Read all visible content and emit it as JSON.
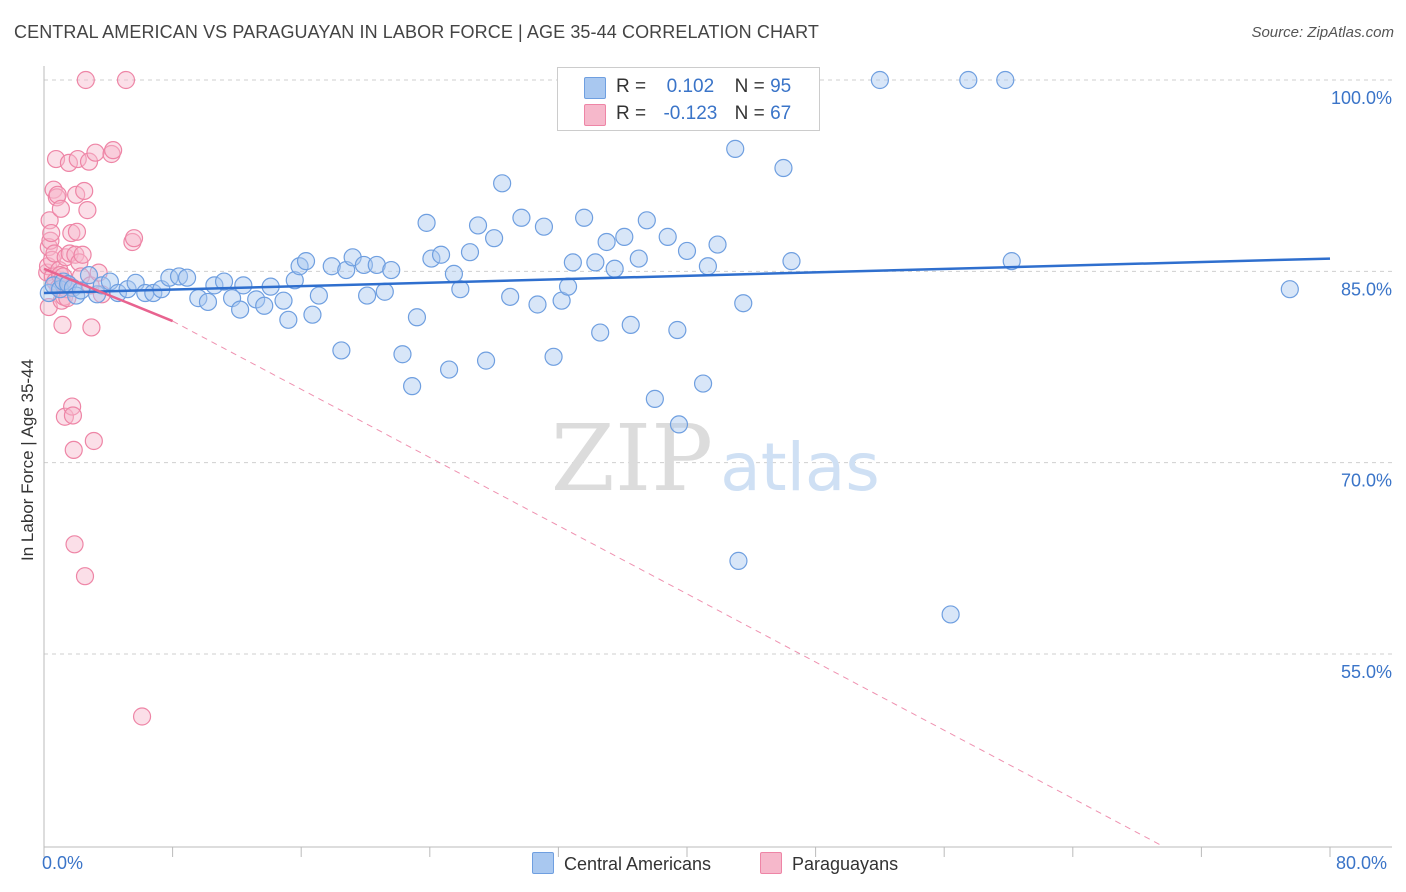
{
  "title": "CENTRAL AMERICAN VS PARAGUAYAN IN LABOR FORCE | AGE 35-44 CORRELATION CHART",
  "source": "Source: ZipAtlas.com",
  "watermark": {
    "zip": "ZIP",
    "atlas": "atlas"
  },
  "legend_stats": [
    {
      "r_label": "R =",
      "r_value": "0.102",
      "n_label": "N =",
      "n_value": "95"
    },
    {
      "r_label": "R =",
      "r_value": "-0.123",
      "n_label": "N =",
      "n_value": "67"
    }
  ],
  "colors": {
    "blue_fill": "#a9c8f0",
    "blue_stroke": "#6f9fe0",
    "blue_line": "#2f6fce",
    "pink_fill": "#f6b8cb",
    "pink_stroke": "#ee85a6",
    "pink_line": "#e8638f",
    "grid": "#cfcfcf",
    "tick_text": "#3a74c8"
  },
  "chart_data": {
    "type": "scatter",
    "title": "CENTRAL AMERICAN VS PARAGUAYAN IN LABOR FORCE | AGE 35-44 CORRELATION CHART",
    "xlabel": "",
    "ylabel": "In Labor Force | Age 35-44",
    "xlim": [
      0,
      80
    ],
    "ylim": [
      40,
      101.5
    ],
    "x_tick_labels": [
      "0.0%",
      "80.0%"
    ],
    "y_ticks": [
      55,
      70,
      85,
      100
    ],
    "y_tick_labels": [
      "55.0%",
      "70.0%",
      "85.0%",
      "100.0%"
    ],
    "grid": true,
    "legend_position": "bottom",
    "series": [
      {
        "name": "Central Americans",
        "r": 0.102,
        "n": 95,
        "trend": {
          "x": [
            0,
            80
          ],
          "y": [
            83.3,
            86.0
          ],
          "style": "solid"
        },
        "points": [
          [
            0.3,
            83.3
          ],
          [
            0.6,
            83.9
          ],
          [
            1.0,
            83.6
          ],
          [
            1.2,
            84.2
          ],
          [
            1.5,
            84.0
          ],
          [
            1.8,
            83.7
          ],
          [
            2.0,
            83.1
          ],
          [
            2.3,
            83.5
          ],
          [
            2.8,
            84.7
          ],
          [
            3.3,
            83.2
          ],
          [
            3.6,
            83.9
          ],
          [
            4.1,
            84.2
          ],
          [
            4.6,
            83.3
          ],
          [
            5.2,
            83.6
          ],
          [
            5.7,
            84.1
          ],
          [
            6.3,
            83.3
          ],
          [
            6.8,
            83.3
          ],
          [
            7.3,
            83.6
          ],
          [
            7.8,
            84.5
          ],
          [
            8.4,
            84.6
          ],
          [
            8.9,
            84.5
          ],
          [
            9.6,
            82.9
          ],
          [
            10.2,
            82.6
          ],
          [
            10.6,
            83.9
          ],
          [
            11.2,
            84.2
          ],
          [
            11.7,
            82.9
          ],
          [
            12.2,
            82.0
          ],
          [
            12.4,
            83.9
          ],
          [
            13.2,
            82.8
          ],
          [
            13.7,
            82.3
          ],
          [
            14.1,
            83.8
          ],
          [
            14.9,
            82.7
          ],
          [
            15.2,
            81.2
          ],
          [
            15.6,
            84.3
          ],
          [
            15.9,
            85.4
          ],
          [
            16.3,
            85.8
          ],
          [
            16.7,
            81.6
          ],
          [
            17.1,
            83.1
          ],
          [
            17.9,
            85.4
          ],
          [
            18.5,
            78.8
          ],
          [
            18.8,
            85.1
          ],
          [
            19.2,
            86.1
          ],
          [
            19.9,
            85.5
          ],
          [
            20.1,
            83.1
          ],
          [
            20.7,
            85.5
          ],
          [
            21.2,
            83.4
          ],
          [
            21.6,
            85.1
          ],
          [
            22.3,
            78.5
          ],
          [
            22.9,
            76.0
          ],
          [
            23.2,
            81.4
          ],
          [
            23.8,
            88.8
          ],
          [
            24.1,
            86.0
          ],
          [
            24.7,
            86.3
          ],
          [
            25.2,
            77.3
          ],
          [
            25.5,
            84.8
          ],
          [
            25.9,
            83.6
          ],
          [
            26.5,
            86.5
          ],
          [
            27.0,
            88.6
          ],
          [
            27.5,
            78.0
          ],
          [
            28.0,
            87.6
          ],
          [
            28.5,
            91.9
          ],
          [
            29.0,
            83.0
          ],
          [
            29.7,
            89.2
          ],
          [
            30.7,
            82.4
          ],
          [
            31.1,
            88.5
          ],
          [
            31.7,
            78.3
          ],
          [
            32.2,
            82.7
          ],
          [
            32.6,
            83.8
          ],
          [
            32.9,
            85.7
          ],
          [
            33.6,
            89.2
          ],
          [
            34.3,
            85.7
          ],
          [
            34.6,
            80.2
          ],
          [
            35.0,
            87.3
          ],
          [
            35.5,
            85.2
          ],
          [
            36.1,
            87.7
          ],
          [
            36.5,
            80.8
          ],
          [
            37.0,
            86.0
          ],
          [
            37.5,
            89.0
          ],
          [
            38.0,
            75.0
          ],
          [
            38.8,
            87.7
          ],
          [
            39.4,
            80.4
          ],
          [
            39.5,
            73.0
          ],
          [
            40.0,
            86.6
          ],
          [
            41.0,
            76.2
          ],
          [
            41.3,
            85.4
          ],
          [
            41.9,
            87.1
          ],
          [
            43.0,
            94.6
          ],
          [
            43.2,
            62.3
          ],
          [
            43.5,
            82.5
          ],
          [
            46.0,
            93.1
          ],
          [
            46.5,
            85.8
          ],
          [
            52.0,
            100.0
          ],
          [
            56.4,
            58.1
          ],
          [
            57.5,
            100.0
          ],
          [
            59.8,
            100.0
          ],
          [
            60.2,
            85.8
          ],
          [
            77.5,
            83.6
          ]
        ]
      },
      {
        "name": "Paraguayans",
        "r": -0.123,
        "n": 67,
        "trend": {
          "x": [
            0,
            8.0
          ],
          "y": [
            85.2,
            81.1
          ],
          "dashed_x": [
            8.0,
            69.5
          ],
          "dashed_y": [
            81.1,
            40.0
          ]
        },
        "points": [
          [
            0.2,
            84.9
          ],
          [
            0.25,
            85.4
          ],
          [
            0.3,
            86.9
          ],
          [
            0.3,
            82.2
          ],
          [
            0.35,
            89.0
          ],
          [
            0.4,
            87.4
          ],
          [
            0.45,
            88.0
          ],
          [
            0.5,
            85.9
          ],
          [
            0.55,
            84.6
          ],
          [
            0.6,
            91.4
          ],
          [
            0.65,
            86.4
          ],
          [
            0.7,
            84.2
          ],
          [
            0.75,
            93.8
          ],
          [
            0.8,
            90.8
          ],
          [
            0.85,
            91.0
          ],
          [
            0.9,
            83.7
          ],
          [
            0.95,
            85.1
          ],
          [
            1.0,
            84.7
          ],
          [
            1.05,
            89.9
          ],
          [
            1.1,
            82.7
          ],
          [
            1.15,
            80.8
          ],
          [
            1.2,
            84.6
          ],
          [
            1.25,
            83.0
          ],
          [
            1.3,
            73.6
          ],
          [
            1.35,
            86.1
          ],
          [
            1.4,
            83.6
          ],
          [
            1.45,
            82.9
          ],
          [
            1.5,
            84.0
          ],
          [
            1.55,
            93.5
          ],
          [
            1.6,
            86.4
          ],
          [
            1.7,
            88.0
          ],
          [
            1.75,
            74.4
          ],
          [
            1.8,
            73.7
          ],
          [
            1.85,
            71.0
          ],
          [
            1.9,
            63.6
          ],
          [
            1.95,
            86.3
          ],
          [
            2.0,
            91.0
          ],
          [
            2.05,
            88.1
          ],
          [
            2.1,
            93.8
          ],
          [
            2.2,
            85.7
          ],
          [
            2.3,
            84.6
          ],
          [
            2.4,
            86.3
          ],
          [
            2.5,
            91.3
          ],
          [
            2.55,
            61.1
          ],
          [
            2.6,
            100.0
          ],
          [
            2.7,
            89.8
          ],
          [
            2.8,
            93.6
          ],
          [
            2.9,
            83.9
          ],
          [
            2.95,
            80.6
          ],
          [
            3.1,
            71.7
          ],
          [
            3.2,
            94.3
          ],
          [
            3.4,
            84.9
          ],
          [
            3.6,
            83.2
          ],
          [
            4.2,
            94.2
          ],
          [
            4.3,
            94.5
          ],
          [
            5.1,
            100.0
          ],
          [
            5.5,
            87.3
          ],
          [
            5.6,
            87.6
          ],
          [
            6.1,
            50.1
          ]
        ]
      }
    ]
  }
}
